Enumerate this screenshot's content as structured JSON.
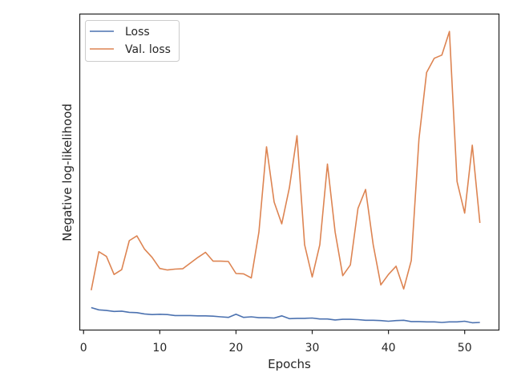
{
  "chart_data": {
    "type": "line",
    "title": "",
    "xlabel": "Epochs",
    "ylabel": "Negative log-likelihood",
    "xlim": [
      -0.5,
      54.5
    ],
    "ylim": [
      0,
      100
    ],
    "xticks": [
      0,
      10,
      20,
      30,
      40,
      50
    ],
    "xtick_labels": [
      "0",
      "10",
      "20",
      "30",
      "40",
      "50"
    ],
    "y_tick_labels_shown": false,
    "grid": false,
    "legend": "top-left",
    "x": [
      1,
      2,
      3,
      4,
      5,
      6,
      7,
      8,
      9,
      10,
      11,
      12,
      13,
      14,
      15,
      16,
      17,
      18,
      19,
      20,
      21,
      22,
      23,
      24,
      25,
      26,
      27,
      28,
      29,
      30,
      31,
      32,
      33,
      34,
      35,
      36,
      37,
      38,
      39,
      40,
      41,
      42,
      43,
      44,
      45,
      46,
      47,
      48,
      49,
      50,
      51,
      52
    ],
    "series": [
      {
        "name": "Loss",
        "color": "#4c72b0",
        "values": [
          7.1,
          6.4,
          6.2,
          5.9,
          6.0,
          5.6,
          5.5,
          5.1,
          4.9,
          5.0,
          4.9,
          4.6,
          4.6,
          4.6,
          4.5,
          4.5,
          4.4,
          4.2,
          4.0,
          5.0,
          4.0,
          4.2,
          3.9,
          3.9,
          3.8,
          4.5,
          3.6,
          3.7,
          3.7,
          3.8,
          3.5,
          3.5,
          3.2,
          3.4,
          3.4,
          3.3,
          3.1,
          3.1,
          3.0,
          2.8,
          3.0,
          3.1,
          2.7,
          2.7,
          2.6,
          2.6,
          2.4,
          2.6,
          2.6,
          2.8,
          2.3,
          2.4
        ]
      },
      {
        "name": "Val. loss",
        "color": "#dd8452",
        "values": [
          12.6,
          24.8,
          23.3,
          17.6,
          19.1,
          28.3,
          29.8,
          25.6,
          23.0,
          19.5,
          19.0,
          19.3,
          19.4,
          21.2,
          23.0,
          24.6,
          21.8,
          21.8,
          21.7,
          17.9,
          17.8,
          16.5,
          31.0,
          58.0,
          40.5,
          33.6,
          45.0,
          61.5,
          27.0,
          16.8,
          27.0,
          52.5,
          31.0,
          17.2,
          20.6,
          38.5,
          44.5,
          27.0,
          14.3,
          17.6,
          20.2,
          13.0,
          22.0,
          60.5,
          81.5,
          86.0,
          87.0,
          94.5,
          47.0,
          37.0,
          58.5,
          33.9
        ]
      }
    ]
  }
}
